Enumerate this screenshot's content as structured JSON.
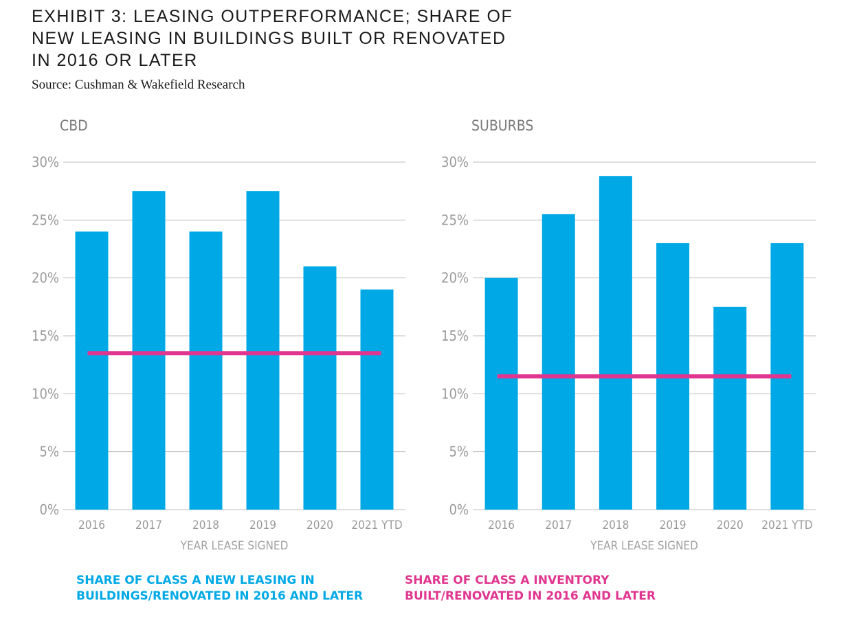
{
  "title_lines": [
    "EXHIBIT 3: LEASING OUTPERFORMANCE; SHARE OF",
    "NEW LEASING IN BUILDINGS BUILT OR RENOVATED",
    "IN 2016 OR LATER"
  ],
  "source": "Source: Cushman & Wakefield Research",
  "legend": {
    "leasing_lines": [
      "SHARE OF CLASS A NEW LEASING IN",
      "BUILDINGS/RENOVATED IN 2016 AND LATER"
    ],
    "inventory_lines": [
      "SHARE OF CLASS A INVENTORY",
      "BUILT/RENOVATED IN 2016 AND LATER"
    ]
  },
  "colors": {
    "bar": "#00a9e6",
    "line": "#e0368f",
    "axis_text": "#9a9a9a",
    "grid": "#bdbdbd"
  },
  "chart_data": [
    {
      "type": "bar",
      "title": "CBD",
      "xlabel": "YEAR LEASE SIGNED",
      "ylabel": "",
      "categories": [
        "2016",
        "2017",
        "2018",
        "2019",
        "2020",
        "2021 YTD"
      ],
      "series": [
        {
          "values": [
            24,
            27.5,
            24,
            27.5,
            21,
            19
          ]
        }
      ],
      "reference_line": {
        "value": 13.5
      },
      "ylim": [
        0,
        30
      ],
      "yticks": [
        0,
        5,
        10,
        15,
        20,
        25,
        30
      ],
      "ytick_labels": [
        "0%",
        "5%",
        "10%",
        "15%",
        "20%",
        "25%",
        "30%"
      ],
      "grid": true
    },
    {
      "type": "bar",
      "title": "SUBURBS",
      "xlabel": "YEAR LEASE SIGNED",
      "ylabel": "",
      "categories": [
        "2016",
        "2017",
        "2018",
        "2019",
        "2020",
        "2021 YTD"
      ],
      "series": [
        {
          "values": [
            20,
            25.5,
            28.8,
            23,
            17.5,
            23
          ]
        }
      ],
      "reference_line": {
        "value": 11.5
      },
      "ylim": [
        0,
        30
      ],
      "yticks": [
        0,
        5,
        10,
        15,
        20,
        25,
        30
      ],
      "ytick_labels": [
        "0%",
        "5%",
        "10%",
        "15%",
        "20%",
        "25%",
        "30%"
      ],
      "grid": true
    }
  ]
}
